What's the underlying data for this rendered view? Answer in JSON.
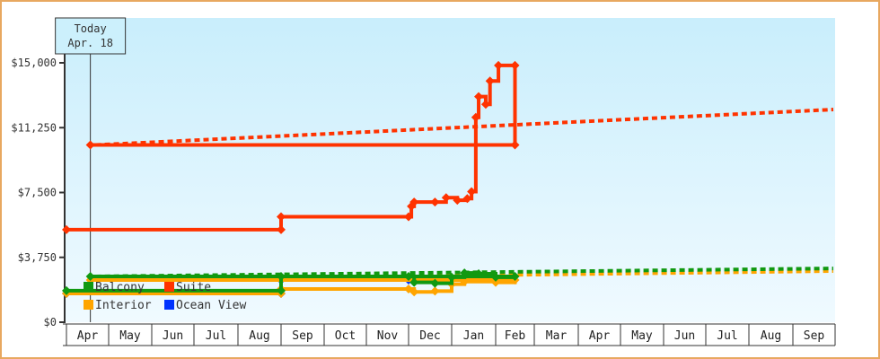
{
  "chart_data": {
    "type": "line",
    "title": "",
    "xlabel": "",
    "ylabel": "",
    "ylim": [
      0,
      18000
    ],
    "y_ticks": [
      {
        "value": 0,
        "label": "$0"
      },
      {
        "value": 3750,
        "label": "$3,750"
      },
      {
        "value": 7500,
        "label": "$7,500"
      },
      {
        "value": 11250,
        "label": "$11,250"
      },
      {
        "value": 15000,
        "label": "$15,000"
      }
    ],
    "x_categories": [
      "Apr",
      "May",
      "Jun",
      "Jul",
      "Aug",
      "Sep",
      "Oct",
      "Nov",
      "Dec",
      "Jan",
      "Feb",
      "Mar",
      "Apr",
      "May",
      "Jun",
      "Jul",
      "Aug",
      "Sep"
    ],
    "grid": false,
    "legend_position": "inside-bottom-left",
    "legend": [
      {
        "name": "Balcony",
        "color": "#119911"
      },
      {
        "name": "Suite",
        "color": "#ff3300"
      },
      {
        "name": "Interior",
        "color": "#ffa500"
      },
      {
        "name": "Ocean View",
        "color": "#0033ff"
      }
    ],
    "annotation": {
      "line1": "Today",
      "line2": "Apr. 18",
      "x_month_index": 12.4
    },
    "series": [
      {
        "name": "Suite",
        "color": "#ff3300",
        "points": [
          {
            "x": "Apr 1",
            "y": 5350
          },
          {
            "x": "Sep 1",
            "y": 5350
          },
          {
            "x": "Sep 1",
            "y": 6100
          },
          {
            "x": "Dec 1",
            "y": 6100
          },
          {
            "x": "Dec 3",
            "y": 6700
          },
          {
            "x": "Dec 5",
            "y": 6950
          },
          {
            "x": "Dec 20",
            "y": 6950
          },
          {
            "x": "Dec 28",
            "y": 7200
          },
          {
            "x": "Jan 5",
            "y": 7050
          },
          {
            "x": "Jan 12",
            "y": 7150
          },
          {
            "x": "Jan 15",
            "y": 7550
          },
          {
            "x": "Jan 18",
            "y": 11850
          },
          {
            "x": "Jan 20",
            "y": 13050
          },
          {
            "x": "Jan 25",
            "y": 12600
          },
          {
            "x": "Jan 28",
            "y": 13950
          },
          {
            "x": "Feb 3",
            "y": 14850
          },
          {
            "x": "Feb 15",
            "y": 14850
          },
          {
            "x": "Feb 15",
            "y": 10250
          },
          {
            "x": "Apr 18",
            "y": 10250
          }
        ],
        "forecast": [
          {
            "x": "Apr 18",
            "y": 10250
          },
          {
            "x": "Sep 30",
            "y": 12300
          }
        ]
      },
      {
        "name": "Balcony",
        "color": "#119911",
        "points": [
          {
            "x": "Apr 1",
            "y": 1820
          },
          {
            "x": "Sep 1",
            "y": 1820
          },
          {
            "x": "Sep 1",
            "y": 2650
          },
          {
            "x": "Dec 1",
            "y": 2650
          },
          {
            "x": "Dec 5",
            "y": 2300
          },
          {
            "x": "Dec 20",
            "y": 2250
          },
          {
            "x": "Jan 1",
            "y": 2600
          },
          {
            "x": "Jan 10",
            "y": 2850
          },
          {
            "x": "Jan 20",
            "y": 2800
          },
          {
            "x": "Feb 1",
            "y": 2600
          },
          {
            "x": "Feb 15",
            "y": 2650
          },
          {
            "x": "Apr 18",
            "y": 2650
          }
        ],
        "forecast": [
          {
            "x": "Apr 18",
            "y": 2650
          },
          {
            "x": "Sep 30",
            "y": 3110
          }
        ]
      },
      {
        "name": "Interior",
        "color": "#ffa500",
        "points": [
          {
            "x": "Apr 1",
            "y": 1660
          },
          {
            "x": "Sep 1",
            "y": 1660
          },
          {
            "x": "Sep 1",
            "y": 1920
          },
          {
            "x": "Dec 1",
            "y": 1920
          },
          {
            "x": "Dec 5",
            "y": 1750
          },
          {
            "x": "Dec 20",
            "y": 1800
          },
          {
            "x": "Jan 1",
            "y": 2200
          },
          {
            "x": "Jan 10",
            "y": 2350
          },
          {
            "x": "Feb 1",
            "y": 2300
          },
          {
            "x": "Feb 15",
            "y": 2440
          },
          {
            "x": "Apr 18",
            "y": 2440
          }
        ],
        "forecast": [
          {
            "x": "Apr 18",
            "y": 2440
          },
          {
            "x": "Sep 30",
            "y": 2960
          }
        ]
      },
      {
        "name": "Ocean View",
        "color": "#0033ff",
        "points": [
          {
            "x": "Apr 1",
            "y": 1660
          },
          {
            "x": "Sep 1",
            "y": 1660
          },
          {
            "x": "Sep 1",
            "y": 2440
          },
          {
            "x": "Dec 1",
            "y": 2440
          }
        ],
        "forecast": []
      }
    ]
  },
  "colors": {
    "border": "#e8a860",
    "plot_bg_top": "#c9eefc",
    "plot_bg_bottom": "#f0faff",
    "axis": "#333333"
  }
}
